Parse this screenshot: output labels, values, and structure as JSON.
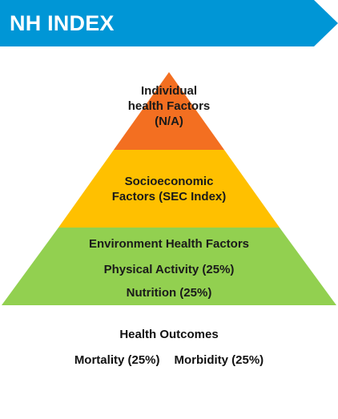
{
  "banner": {
    "title": "NH INDEX",
    "color": "#0096d6"
  },
  "pyramid": {
    "tiers": [
      {
        "lines": [
          "Individual",
          "health Factors",
          "(N/A)"
        ],
        "color": "#f36f21"
      },
      {
        "lines": [
          "Socioeconomic",
          "Factors (SEC Index)"
        ],
        "color": "#ffc000"
      },
      {
        "lines": [
          "Environment Health Factors",
          "Physical Activity (25%)",
          "Nutrition (25%)"
        ],
        "color": "#92d050"
      }
    ]
  },
  "outcomes": {
    "title": "Health Outcomes",
    "items": [
      "Mortality (25%)",
      "Morbidity (25%)"
    ]
  }
}
